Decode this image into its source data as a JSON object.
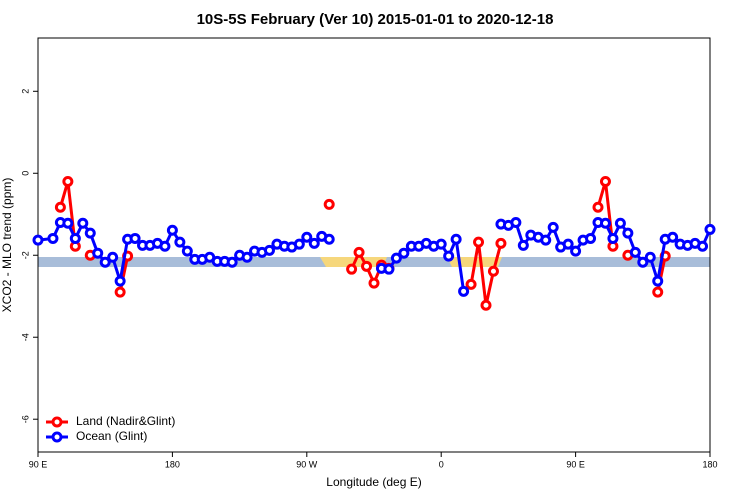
{
  "chart_data": {
    "type": "line",
    "title": "10S-5S February (Ver 10)   2015-01-01 to 2020-12-18",
    "x_label": "Longitude (deg E)",
    "y_label": "XCO2 - MLO trend (ppm)",
    "xlim": [
      90,
      540
    ],
    "ylim": [
      -6.8,
      3.3
    ],
    "xticks": [
      {
        "value": 90,
        "label": "90 E"
      },
      {
        "value": 180,
        "label": "180"
      },
      {
        "value": 270,
        "label": "90 W"
      },
      {
        "value": 360,
        "label": "0"
      },
      {
        "value": 450,
        "label": "90 E"
      },
      {
        "value": 540,
        "label": "180"
      }
    ],
    "yticks": [
      -6,
      -4,
      -2,
      0,
      2
    ],
    "legend": "bottom-left",
    "series": [
      {
        "name": "Land (Nadir&Glint)",
        "color": "#ff0000",
        "x": [
          105,
          110,
          115,
          120,
          125,
          135,
          145,
          150,
          220,
          285,
          295,
          300,
          305,
          310,
          315,
          320,
          325,
          350,
          380,
          385,
          390,
          395,
          400,
          430,
          465,
          470,
          475,
          480,
          485,
          495,
          505,
          510
        ],
        "values": [
          -0.83,
          -0.2,
          -1.78,
          null,
          -2.0,
          null,
          -2.9,
          -2.02,
          null,
          -0.76,
          null,
          -2.34,
          -1.93,
          -2.27,
          -2.68,
          -2.24,
          -2.32,
          null,
          -2.71,
          -1.68,
          -3.22,
          -2.39,
          -1.71,
          null,
          -0.83,
          -0.2,
          -1.78,
          null,
          -2.0,
          null,
          -2.9,
          -2.02
        ]
      },
      {
        "name": "Ocean (Glint)",
        "color": "#0000ff",
        "x": [
          90,
          100,
          105,
          110,
          115,
          120,
          125,
          130,
          135,
          140,
          145,
          150,
          155,
          160,
          165,
          170,
          175,
          180,
          185,
          190,
          195,
          200,
          205,
          210,
          215,
          220,
          225,
          230,
          235,
          240,
          245,
          250,
          255,
          260,
          265,
          270,
          275,
          280,
          285,
          300,
          320,
          325,
          330,
          335,
          340,
          345,
          350,
          355,
          360,
          365,
          370,
          375,
          390,
          400,
          405,
          410,
          415,
          420,
          425,
          430,
          435,
          440,
          445,
          450,
          455,
          460,
          465,
          470,
          475,
          480,
          485,
          490,
          495,
          500,
          505,
          510,
          515,
          520,
          525,
          530,
          535,
          540
        ],
        "values": [
          -1.63,
          -1.59,
          -1.2,
          -1.22,
          -1.59,
          -1.22,
          -1.46,
          -1.95,
          -2.17,
          -2.05,
          -2.63,
          -1.61,
          -1.59,
          -1.76,
          -1.76,
          -1.71,
          -1.78,
          -1.39,
          -1.68,
          -1.9,
          -2.1,
          -2.1,
          -2.05,
          -2.15,
          -2.15,
          -2.17,
          -2.0,
          -2.05,
          -1.9,
          -1.93,
          -1.88,
          -1.73,
          -1.78,
          -1.8,
          -1.73,
          -1.56,
          -1.71,
          -1.54,
          -1.61,
          null,
          -2.32,
          -2.34,
          -2.07,
          -1.95,
          -1.78,
          -1.78,
          -1.71,
          -1.78,
          -1.73,
          -2.02,
          -1.61,
          -2.88,
          null,
          -1.24,
          -1.27,
          -1.2,
          -1.76,
          -1.51,
          -1.56,
          -1.63,
          -1.32,
          -1.8,
          -1.73,
          -1.9,
          -1.63,
          -1.59,
          -1.2,
          -1.22,
          -1.59,
          -1.22,
          -1.46,
          -1.93,
          -2.17,
          -2.05,
          -2.63,
          -1.61,
          -1.56,
          -1.73,
          -1.76,
          -1.71,
          -1.78,
          -1.37
        ]
      }
    ]
  }
}
